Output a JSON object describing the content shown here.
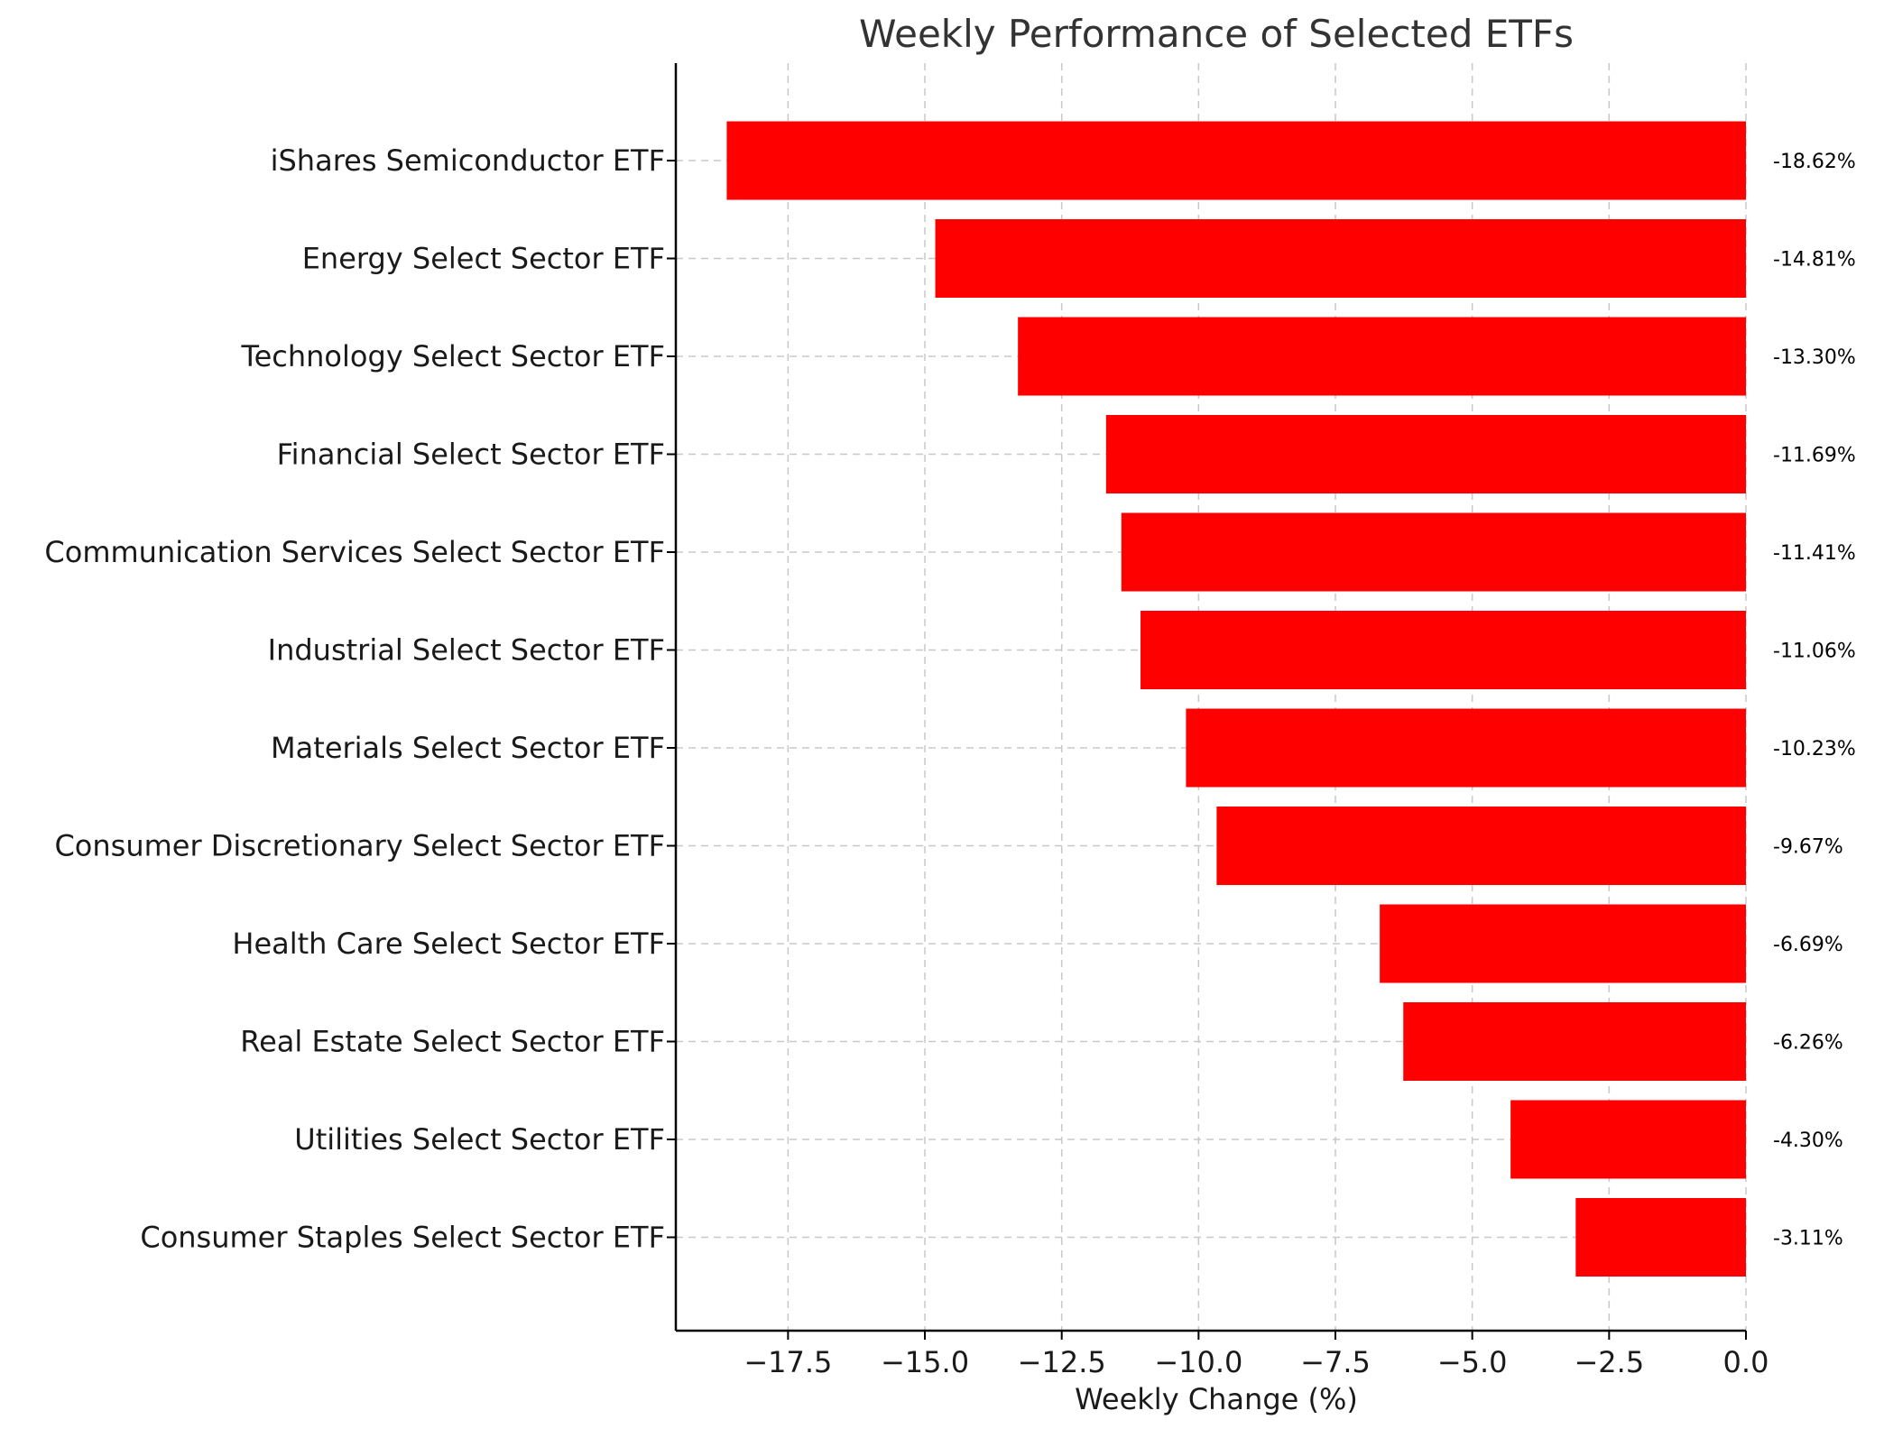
{
  "chart_data": {
    "type": "bar",
    "orientation": "horizontal",
    "title": "Weekly Performance of Selected ETFs",
    "xlabel": "Weekly Change (%)",
    "ylabel": "",
    "categories": [
      "iShares Semiconductor ETF",
      "Energy Select Sector ETF",
      "Technology Select Sector ETF",
      "Financial Select Sector ETF",
      "Communication Services Select Sector ETF",
      "Industrial Select Sector ETF",
      "Materials Select Sector ETF",
      "Consumer Discretionary Select Sector ETF",
      "Health Care Select Sector ETF",
      "Real Estate Select Sector ETF",
      "Utilities Select Sector ETF",
      "Consumer Staples Select Sector ETF"
    ],
    "values": [
      -18.62,
      -14.81,
      -13.3,
      -11.69,
      -11.41,
      -11.06,
      -10.23,
      -9.67,
      -6.69,
      -6.26,
      -4.3,
      -3.11
    ],
    "data_labels": [
      "-18.62%",
      "-14.81%",
      "-13.30%",
      "-11.69%",
      "-11.41%",
      "-11.06%",
      "-10.23%",
      "-9.67%",
      "-6.69%",
      "-6.26%",
      "-4.30%",
      "-3.11%"
    ],
    "xlim": [
      -19.55,
      0
    ],
    "xticks": [
      -17.5,
      -15.0,
      -12.5,
      -10.0,
      -7.5,
      -5.0,
      -2.5,
      0.0
    ],
    "xtick_labels": [
      "−17.5",
      "−15.0",
      "−12.5",
      "−10.0",
      "−7.5",
      "−5.0",
      "−2.5",
      "0.0"
    ],
    "grid": true,
    "bar_color": "#ff0000"
  }
}
